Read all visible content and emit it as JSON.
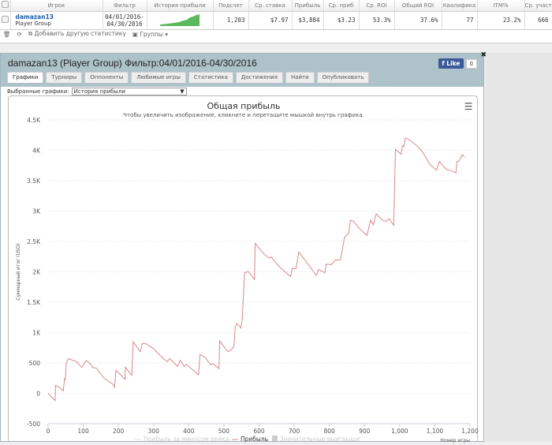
{
  "table": {
    "headers": [
      "Игрок",
      "Фильтр",
      "История прибыли",
      "Подсчет",
      "Ср. ставка",
      "Прибыль",
      "Ср. приб",
      "Ср. ROI",
      "Общий ROI",
      "Квалифика",
      "ITM%",
      "Ср. участ"
    ],
    "row": {
      "player": "damazan13",
      "group": "Player Group",
      "filter_from": "04/01/2016-",
      "filter_to": "04/30/2016",
      "count": "1,203",
      "avg_stake": "$7.97",
      "profit": "$3,884",
      "avg_profit": "$3.23",
      "avg_roi": "53.3%",
      "total_roi": "37.6%",
      "qualify": "77",
      "itm": "23.2%",
      "avg_entrants": "666"
    }
  },
  "toolbar": {
    "add_stat": "Добавить другую статистику",
    "groups": "Группы"
  },
  "panel": {
    "title": "damazan13 (Player Group) Фильтр:04/01/2016-04/30/2016",
    "like": "Like",
    "like_count": "0",
    "tabs": [
      "Графики",
      "Турниры",
      "Оппоненты",
      "Любимые игры",
      "Статистика",
      "Достижения",
      "Найти",
      "Опубликовать"
    ],
    "selected_label": "Выбранные графики:",
    "selected_value": "История прибыли"
  },
  "colors": {
    "line": "#d9888a",
    "header": "#adc2c9",
    "spark": "#5cb85c"
  },
  "chart_data": {
    "type": "line",
    "title": "Общая прибыль",
    "subtitle": "Чтобы увеличить изображение, кликните и перетащите мышкой внутрь графика.",
    "xlabel": "Номер игры",
    "ylabel": "Суммарный итог (USD)",
    "xlim": [
      0,
      1200
    ],
    "ylim": [
      -500,
      4500
    ],
    "grid": true,
    "legend_position": "bottom",
    "x_ticks": [
      "0",
      "100",
      "200",
      "300",
      "400",
      "500",
      "600",
      "700",
      "800",
      "900",
      "1,000",
      "1,100",
      "1,200"
    ],
    "y_ticks": [
      "-500",
      "0",
      "500",
      "1K",
      "1.5K",
      "2K",
      "2.5K",
      "3K",
      "3.5K",
      "4K",
      "4.5K"
    ],
    "legend": [
      "Прибыль за минусом рейка",
      "Прибыль",
      "Значительные выигрыши"
    ],
    "series": [
      {
        "name": "Прибыль",
        "points": [
          [
            0,
            0
          ],
          [
            20,
            -120
          ],
          [
            21,
            130
          ],
          [
            32,
            100
          ],
          [
            43,
            40
          ],
          [
            47,
            250
          ],
          [
            49,
            220
          ],
          [
            52,
            510
          ],
          [
            58,
            570
          ],
          [
            81,
            520
          ],
          [
            96,
            425
          ],
          [
            103,
            490
          ],
          [
            108,
            540
          ],
          [
            122,
            480
          ],
          [
            126,
            425
          ],
          [
            137,
            415
          ],
          [
            159,
            250
          ],
          [
            185,
            145
          ],
          [
            189,
            100
          ],
          [
            193,
            380
          ],
          [
            208,
            295
          ],
          [
            219,
            230
          ],
          [
            220,
            430
          ],
          [
            238,
            295
          ],
          [
            242,
            850
          ],
          [
            262,
            685
          ],
          [
            268,
            820
          ],
          [
            279,
            815
          ],
          [
            301,
            730
          ],
          [
            327,
            575
          ],
          [
            339,
            520
          ],
          [
            346,
            575
          ],
          [
            357,
            510
          ],
          [
            368,
            445
          ],
          [
            376,
            545
          ],
          [
            387,
            440
          ],
          [
            393,
            475
          ],
          [
            428,
            305
          ],
          [
            432,
            640
          ],
          [
            447,
            590
          ],
          [
            462,
            470
          ],
          [
            469,
            490
          ],
          [
            486,
            405
          ],
          [
            488,
            865
          ],
          [
            511,
            685
          ],
          [
            522,
            720
          ],
          [
            529,
            780
          ],
          [
            532,
            1085
          ],
          [
            537,
            1150
          ],
          [
            548,
            1075
          ],
          [
            552,
            1205
          ],
          [
            559,
            1985
          ],
          [
            569,
            2005
          ],
          [
            587,
            1875
          ],
          [
            589,
            2470
          ],
          [
            608,
            2330
          ],
          [
            627,
            2225
          ],
          [
            634,
            2245
          ],
          [
            660,
            2070
          ],
          [
            690,
            1920
          ],
          [
            694,
            2060
          ],
          [
            705,
            2050
          ],
          [
            713,
            2325
          ],
          [
            735,
            2160
          ],
          [
            763,
            1940
          ],
          [
            769,
            2040
          ],
          [
            787,
            1985
          ],
          [
            791,
            2125
          ],
          [
            806,
            2120
          ],
          [
            817,
            2195
          ],
          [
            832,
            2200
          ],
          [
            843,
            2570
          ],
          [
            855,
            2635
          ],
          [
            860,
            2850
          ],
          [
            869,
            2830
          ],
          [
            884,
            2720
          ],
          [
            907,
            2600
          ],
          [
            917,
            2850
          ],
          [
            925,
            2775
          ],
          [
            933,
            2955
          ],
          [
            951,
            2850
          ],
          [
            962,
            2830
          ],
          [
            970,
            2875
          ],
          [
            983,
            2765
          ],
          [
            988,
            4015
          ],
          [
            1004,
            3935
          ],
          [
            1008,
            4075
          ],
          [
            1012,
            4065
          ],
          [
            1016,
            4205
          ],
          [
            1027,
            4175
          ],
          [
            1049,
            4075
          ],
          [
            1064,
            3980
          ],
          [
            1087,
            3760
          ],
          [
            1105,
            3675
          ],
          [
            1113,
            3815
          ],
          [
            1131,
            3695
          ],
          [
            1150,
            3655
          ],
          [
            1160,
            3630
          ],
          [
            1163,
            3815
          ],
          [
            1169,
            3825
          ],
          [
            1178,
            3925
          ],
          [
            1185,
            3890
          ]
        ]
      }
    ]
  }
}
